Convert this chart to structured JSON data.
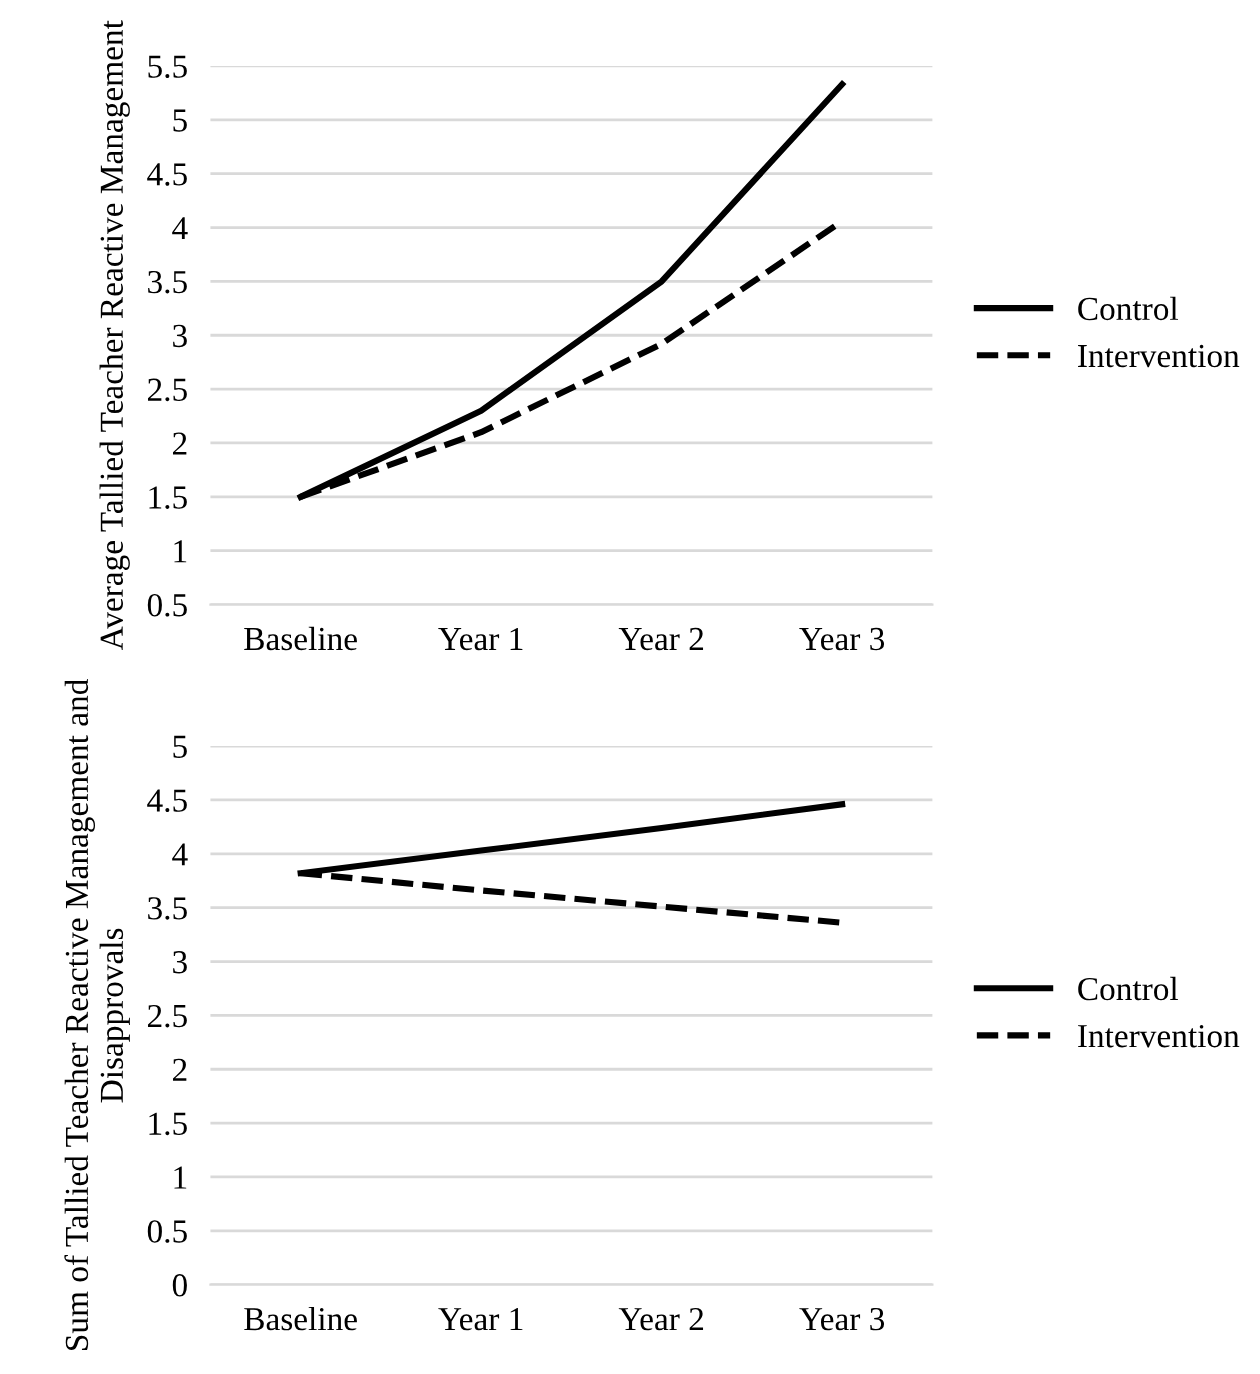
{
  "chart_data": [
    {
      "type": "line",
      "categories": [
        "Baseline",
        "Year 1",
        "Year 2",
        "Year 3"
      ],
      "ylabel": "Average Tallied Teacher Reactive Management",
      "ylim": [
        0.5,
        5.5
      ],
      "yticks": [
        0.5,
        1,
        1.5,
        2,
        2.5,
        3,
        3.5,
        4,
        4.5,
        5,
        5.5
      ],
      "grid": "y",
      "legend": "right",
      "marker": "none",
      "series": [
        {
          "name": "Control",
          "color": "#000000",
          "line_style": "solid",
          "values": [
            1.5,
            2.3,
            3.5,
            5.33
          ]
        },
        {
          "name": "Intervention",
          "color": "#000000",
          "line_style": "dashed",
          "values": [
            1.5,
            2.1,
            2.92,
            4.06
          ]
        }
      ]
    },
    {
      "type": "line",
      "categories": [
        "Baseline",
        "Year 1",
        "Year 2",
        "Year 3"
      ],
      "ylabel": "Sum of Tallied Teacher Reactive Management and Disapprovals",
      "ylim": [
        0,
        5
      ],
      "yticks": [
        0,
        0.5,
        1,
        1.5,
        2,
        2.5,
        3,
        3.5,
        4,
        4.5,
        5
      ],
      "grid": "y",
      "legend": "right",
      "marker": "none",
      "series": [
        {
          "name": "Control",
          "color": "#000000",
          "line_style": "solid",
          "values": [
            3.82,
            4.03,
            4.24,
            4.46
          ]
        },
        {
          "name": "Intervention",
          "color": "#000000",
          "line_style": "dashed",
          "values": [
            3.82,
            3.66,
            3.51,
            3.36
          ]
        }
      ]
    }
  ]
}
